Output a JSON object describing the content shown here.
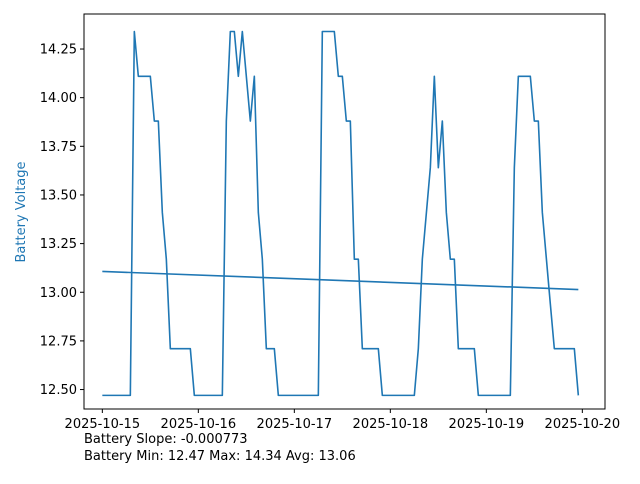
{
  "chart_data": {
    "type": "line",
    "xlabel": "",
    "ylabel": "Battery Voltage",
    "ylabel_color": "#1f77b4",
    "series_color": "#1f77b4",
    "xlim": [
      "2025-10-14 19:25",
      "2025-10-20 05:40"
    ],
    "ylim": [
      12.4,
      14.43
    ],
    "yticks": [
      12.5,
      12.75,
      13.0,
      13.25,
      13.5,
      13.75,
      14.0,
      14.25
    ],
    "ytick_labels": [
      "12.50",
      "12.75",
      "13.00",
      "13.25",
      "13.50",
      "13.75",
      "14.00",
      "14.25"
    ],
    "xticks": [
      "2025-10-15",
      "2025-10-16",
      "2025-10-17",
      "2025-10-18",
      "2025-10-19",
      "2025-10-20"
    ],
    "xtick_labels": [
      "2025-10-15",
      "2025-10-16",
      "2025-10-17",
      "2025-10-18",
      "2025-10-19",
      "2025-10-20"
    ],
    "grid": false,
    "series": [
      {
        "type": "line",
        "points": [
          [
            "2025-10-15 00:00",
            12.47
          ],
          [
            "2025-10-15 07:00",
            12.47
          ],
          [
            "2025-10-15 08:00",
            14.34
          ],
          [
            "2025-10-15 09:00",
            14.11
          ],
          [
            "2025-10-15 12:00",
            14.11
          ],
          [
            "2025-10-15 13:00",
            13.88
          ],
          [
            "2025-10-15 14:00",
            13.88
          ],
          [
            "2025-10-15 15:00",
            13.41
          ],
          [
            "2025-10-15 16:00",
            13.17
          ],
          [
            "2025-10-15 17:00",
            12.71
          ],
          [
            "2025-10-15 22:00",
            12.71
          ],
          [
            "2025-10-15 23:00",
            12.47
          ],
          [
            "2025-10-16 06:00",
            12.47
          ],
          [
            "2025-10-16 07:00",
            13.88
          ],
          [
            "2025-10-16 08:00",
            14.34
          ],
          [
            "2025-10-16 09:00",
            14.34
          ],
          [
            "2025-10-16 10:00",
            14.11
          ],
          [
            "2025-10-16 11:00",
            14.34
          ],
          [
            "2025-10-16 13:00",
            13.88
          ],
          [
            "2025-10-16 14:00",
            14.11
          ],
          [
            "2025-10-16 15:00",
            13.41
          ],
          [
            "2025-10-16 16:00",
            13.17
          ],
          [
            "2025-10-16 17:00",
            12.71
          ],
          [
            "2025-10-16 19:00",
            12.71
          ],
          [
            "2025-10-16 20:00",
            12.47
          ],
          [
            "2025-10-17 06:00",
            12.47
          ],
          [
            "2025-10-17 07:00",
            14.34
          ],
          [
            "2025-10-17 10:00",
            14.34
          ],
          [
            "2025-10-17 11:00",
            14.11
          ],
          [
            "2025-10-17 12:00",
            14.11
          ],
          [
            "2025-10-17 13:00",
            13.88
          ],
          [
            "2025-10-17 14:00",
            13.88
          ],
          [
            "2025-10-17 15:00",
            13.17
          ],
          [
            "2025-10-17 16:00",
            13.17
          ],
          [
            "2025-10-17 17:00",
            12.71
          ],
          [
            "2025-10-17 21:00",
            12.71
          ],
          [
            "2025-10-17 22:00",
            12.47
          ],
          [
            "2025-10-18 06:00",
            12.47
          ],
          [
            "2025-10-18 07:00",
            12.71
          ],
          [
            "2025-10-18 08:00",
            13.17
          ],
          [
            "2025-10-18 10:00",
            13.64
          ],
          [
            "2025-10-18 11:00",
            14.11
          ],
          [
            "2025-10-18 12:00",
            13.64
          ],
          [
            "2025-10-18 13:00",
            13.88
          ],
          [
            "2025-10-18 14:00",
            13.41
          ],
          [
            "2025-10-18 15:00",
            13.17
          ],
          [
            "2025-10-18 16:00",
            13.17
          ],
          [
            "2025-10-18 17:00",
            12.71
          ],
          [
            "2025-10-18 21:00",
            12.71
          ],
          [
            "2025-10-18 22:00",
            12.47
          ],
          [
            "2025-10-19 06:00",
            12.47
          ],
          [
            "2025-10-19 07:00",
            13.64
          ],
          [
            "2025-10-19 08:00",
            14.11
          ],
          [
            "2025-10-19 11:00",
            14.11
          ],
          [
            "2025-10-19 12:00",
            13.88
          ],
          [
            "2025-10-19 13:00",
            13.88
          ],
          [
            "2025-10-19 14:00",
            13.41
          ],
          [
            "2025-10-19 16:00",
            12.94
          ],
          [
            "2025-10-19 17:00",
            12.71
          ],
          [
            "2025-10-19 22:00",
            12.71
          ],
          [
            "2025-10-19 23:00",
            12.47
          ]
        ]
      },
      {
        "type": "trend",
        "points": [
          [
            "2025-10-15 00:00",
            13.107
          ],
          [
            "2025-10-19 23:00",
            13.014
          ]
        ]
      }
    ]
  },
  "footer": {
    "slope_text": "Battery Slope: -0.000773",
    "stats_text": "Battery Min: 12.47 Max: 14.34 Avg: 13.06"
  }
}
